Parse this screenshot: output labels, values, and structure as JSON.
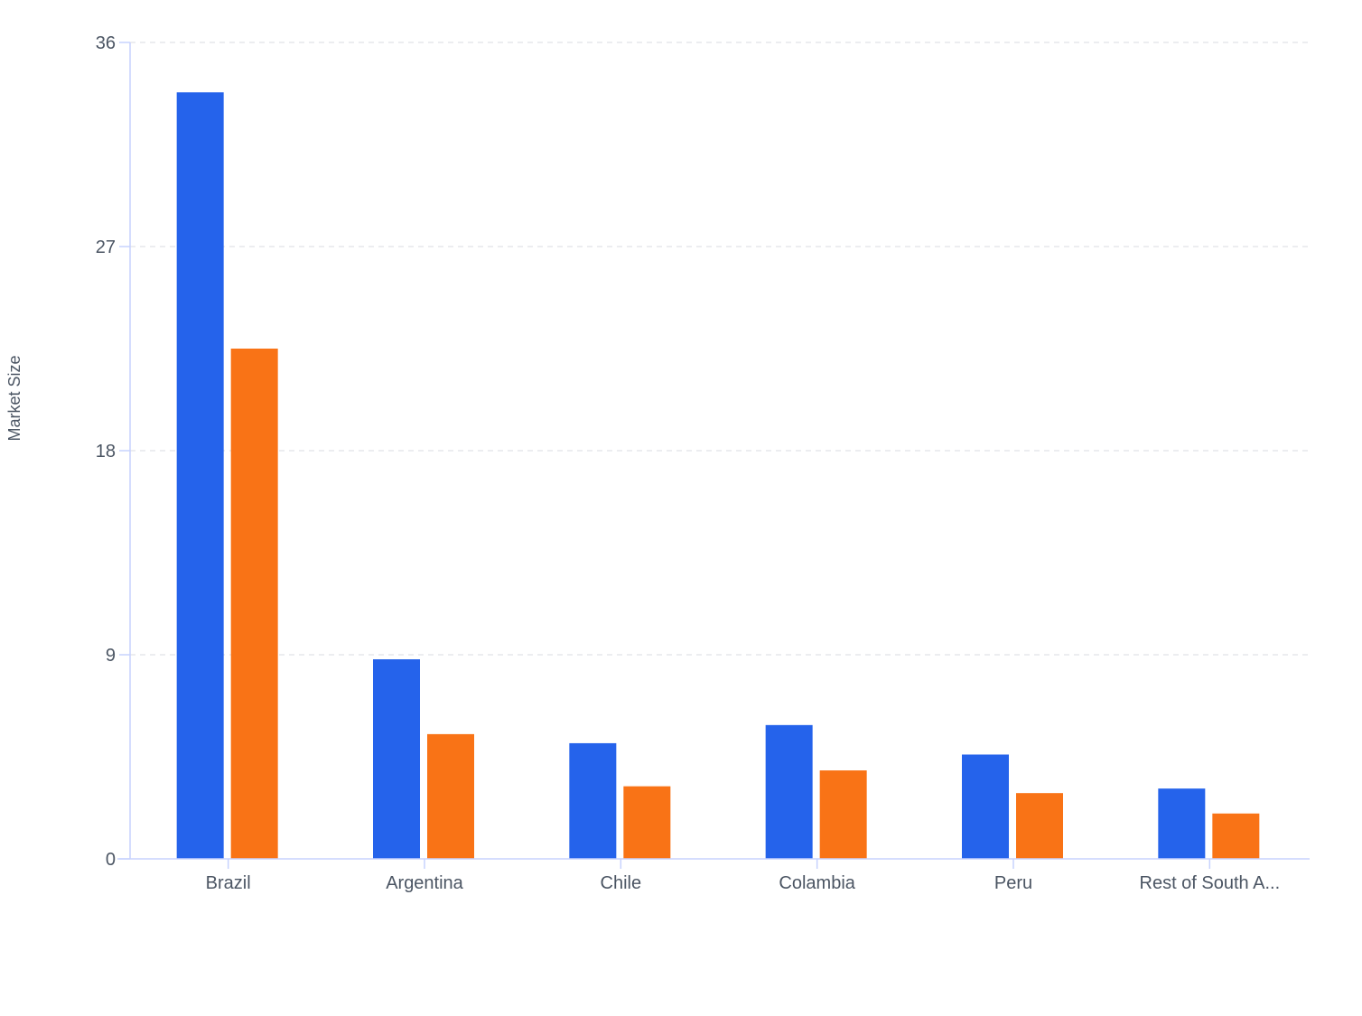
{
  "chart_data": {
    "type": "bar",
    "title": "",
    "xlabel": "",
    "ylabel": "Market Size",
    "ylim": [
      0,
      36
    ],
    "yticks": [
      0,
      9,
      18,
      27,
      36
    ],
    "grid": true,
    "categories": [
      "Brazil",
      "Argentina",
      "Chile",
      "Colambia",
      "Peru",
      "Rest of South A..."
    ],
    "series": [
      {
        "values": [
          33.8,
          8.8,
          5.1,
          5.9,
          4.6,
          3.1
        ],
        "color": "#2563eb"
      },
      {
        "values": [
          22.5,
          5.5,
          3.2,
          3.9,
          2.9,
          2.0
        ],
        "color": "#f97316"
      }
    ],
    "colors": {
      "axis": "#c7d2fe",
      "grid": "#e5e7eb",
      "text": "#4b5563"
    }
  }
}
